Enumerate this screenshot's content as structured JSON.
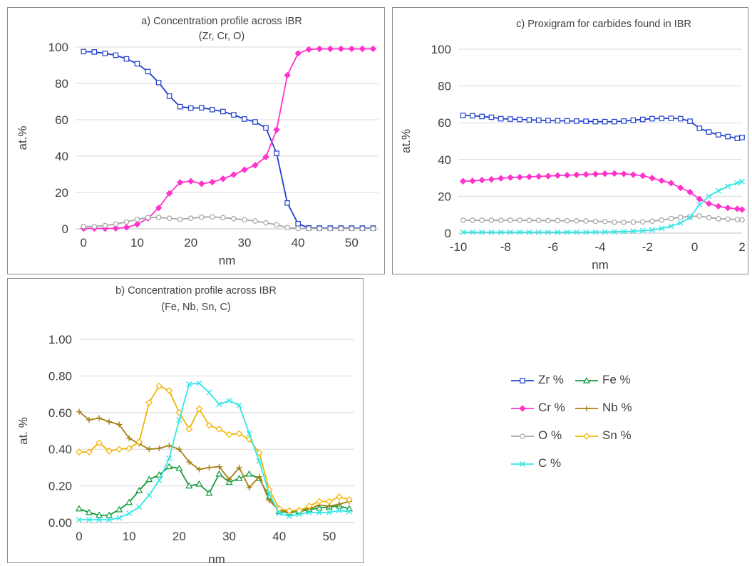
{
  "chart_data": [
    {
      "id": "a",
      "type": "line",
      "title": "a) Concentration profile across IBR",
      "subtitle": "(Zr, Cr, O)",
      "xlabel": "nm",
      "ylabel": "at.%",
      "xlim": [
        -1.5,
        55
      ],
      "ylim": [
        0,
        100
      ],
      "xticks": [
        0,
        10,
        20,
        30,
        40,
        50
      ],
      "yticks": [
        0,
        20,
        40,
        60,
        80,
        100
      ],
      "xtick_labels": [
        "0",
        "10",
        "20",
        "30",
        "40",
        "50"
      ],
      "ytick_labels": [
        "0",
        "20",
        "40",
        "60",
        "80",
        "100"
      ],
      "grid": "horizontal",
      "x": [
        0,
        2,
        4,
        6,
        8,
        10,
        12,
        14,
        16,
        18,
        20,
        22,
        24,
        26,
        28,
        30,
        32,
        34,
        36,
        38,
        40,
        42,
        44,
        46,
        48,
        50,
        52,
        54
      ],
      "series": [
        {
          "name": "Zr %",
          "color": "#1f3fcf",
          "marker": "square-open",
          "values": [
            97.5,
            97.3,
            96.5,
            95.5,
            93.5,
            90.8,
            86.5,
            80.5,
            73,
            67.2,
            66.4,
            66.6,
            65.6,
            64.5,
            62.7,
            60.4,
            58.8,
            55.5,
            41.5,
            14.2,
            2.8,
            0.5,
            0.4,
            0.4,
            0.4,
            0.4,
            0.4,
            0.4
          ]
        },
        {
          "name": "Cr %",
          "color": "#ff33cc",
          "marker": "diamond",
          "values": [
            0.2,
            0.2,
            0.2,
            0.3,
            0.8,
            2.5,
            5.8,
            11.5,
            19.5,
            25.5,
            26.2,
            24.8,
            25.7,
            27.5,
            29.8,
            32.5,
            35,
            39.5,
            54.5,
            84.5,
            96.5,
            98.7,
            99,
            99,
            99,
            99,
            99,
            99
          ]
        },
        {
          "name": "O %",
          "color": "#a6a6a6",
          "marker": "circle-open",
          "values": [
            1.3,
            1.3,
            1.8,
            2.6,
            3.8,
            5.2,
            6.2,
            6.3,
            5.8,
            5.2,
            5.8,
            6.4,
            6.6,
            6.1,
            5.6,
            5,
            4.3,
            3.3,
            2.2,
            0.7,
            0.2,
            0.1,
            0.1,
            0.1,
            0.1,
            0.1,
            0.1,
            0.1
          ]
        }
      ]
    },
    {
      "id": "c",
      "type": "line",
      "title": "c) Proxigram for carbides found in IBR",
      "subtitle": "",
      "xlabel": "nm",
      "ylabel": "at.%",
      "xlim": [
        -10,
        2
      ],
      "ylim": [
        0,
        100
      ],
      "xticks": [
        -10,
        -8,
        -6,
        -4,
        -2,
        0,
        2
      ],
      "yticks": [
        0,
        20,
        40,
        60,
        80,
        100
      ],
      "xtick_labels": [
        "-10",
        "-8",
        "-6",
        "-4",
        "-2",
        "0",
        "2"
      ],
      "ytick_labels": [
        "0",
        "20",
        "40",
        "60",
        "80",
        "100"
      ],
      "grid": "horizontal",
      "x": [
        -9.8,
        -9.4,
        -9.0,
        -8.6,
        -8.2,
        -7.8,
        -7.4,
        -7.0,
        -6.6,
        -6.2,
        -5.8,
        -5.4,
        -5.0,
        -4.6,
        -4.2,
        -3.8,
        -3.4,
        -3.0,
        -2.6,
        -2.2,
        -1.8,
        -1.4,
        -1.0,
        -0.6,
        -0.2,
        0.2,
        0.6,
        1.0,
        1.4,
        1.8,
        2.0
      ],
      "series": [
        {
          "name": "Zr %",
          "color": "#1f3fcf",
          "marker": "square-open",
          "values": [
            64,
            63.8,
            63.4,
            63,
            62.2,
            62,
            61.8,
            61.6,
            61.4,
            61.2,
            61.1,
            61,
            60.9,
            60.8,
            60.6,
            60.6,
            60.6,
            60.9,
            61.4,
            61.8,
            62.2,
            62.3,
            62.4,
            62.2,
            60.8,
            57,
            55,
            53.5,
            52.5,
            51.5,
            52
          ]
        },
        {
          "name": "Cr %",
          "color": "#ff33cc",
          "marker": "diamond",
          "values": [
            28.2,
            28.4,
            28.8,
            29.2,
            29.8,
            30.2,
            30.4,
            30.6,
            30.8,
            31,
            31.3,
            31.5,
            31.7,
            31.9,
            32.1,
            32.3,
            32.4,
            32.2,
            31.8,
            31.2,
            29.9,
            28.5,
            27.2,
            24.6,
            22.3,
            18.5,
            16,
            14.6,
            13.7,
            13.2,
            12.8
          ]
        },
        {
          "name": "O %",
          "color": "#a6a6a6",
          "marker": "circle-open",
          "values": [
            7,
            7,
            7,
            7,
            7,
            7,
            7,
            6.9,
            6.9,
            6.8,
            6.8,
            6.7,
            6.7,
            6.6,
            6.4,
            6.3,
            6,
            5.9,
            6,
            6.1,
            6.5,
            7.1,
            7.9,
            8.6,
            9,
            9.3,
            8.4,
            7.8,
            7.6,
            7.4,
            7.2
          ]
        },
        {
          "name": "C %",
          "color": "#33e6e6",
          "marker": "x",
          "values": [
            0.5,
            0.5,
            0.5,
            0.5,
            0.5,
            0.5,
            0.5,
            0.5,
            0.5,
            0.5,
            0.5,
            0.5,
            0.5,
            0.5,
            0.6,
            0.6,
            0.7,
            0.8,
            1,
            1.3,
            1.7,
            2.5,
            3.8,
            5.5,
            8.5,
            15.5,
            20,
            23,
            25.5,
            27.3,
            28
          ]
        }
      ]
    },
    {
      "id": "b",
      "type": "line",
      "title": "b) Concentration profile across IBR",
      "subtitle": "(Fe, Nb, Sn, C)",
      "xlabel": "nm",
      "ylabel": "at. %",
      "xlim": [
        0,
        55
      ],
      "ylim": [
        0,
        1
      ],
      "xticks": [
        0,
        10,
        20,
        30,
        40,
        50
      ],
      "yticks": [
        0,
        0.2,
        0.4,
        0.6,
        0.8,
        1.0
      ],
      "xtick_labels": [
        "0",
        "10",
        "20",
        "30",
        "40",
        "50"
      ],
      "ytick_labels": [
        "0.00",
        "0.20",
        "0.40",
        "0.60",
        "0.80",
        "1.00"
      ],
      "grid": "horizontal",
      "x": [
        0,
        2,
        4,
        6,
        8,
        10,
        12,
        14,
        16,
        18,
        20,
        22,
        24,
        26,
        28,
        30,
        32,
        34,
        36,
        38,
        40,
        42,
        44,
        46,
        48,
        50,
        52,
        54
      ],
      "series": [
        {
          "name": "Fe %",
          "color": "#109a3c",
          "marker": "triangle-open",
          "values": [
            0.075,
            0.055,
            0.04,
            0.04,
            0.07,
            0.11,
            0.175,
            0.235,
            0.26,
            0.305,
            0.295,
            0.2,
            0.21,
            0.16,
            0.265,
            0.22,
            0.24,
            0.265,
            0.24,
            0.14,
            0.06,
            0.055,
            0.06,
            0.07,
            0.08,
            0.085,
            0.09,
            0.075
          ]
        },
        {
          "name": "Nb %",
          "color": "#a6800f",
          "marker": "plus",
          "values": [
            0.605,
            0.56,
            0.57,
            0.55,
            0.535,
            0.46,
            0.43,
            0.4,
            0.405,
            0.42,
            0.4,
            0.33,
            0.29,
            0.3,
            0.305,
            0.235,
            0.3,
            0.19,
            0.25,
            0.12,
            0.065,
            0.06,
            0.07,
            0.075,
            0.095,
            0.09,
            0.1,
            0.115
          ]
        },
        {
          "name": "Sn %",
          "color": "#f0b400",
          "marker": "diamond-open",
          "values": [
            0.385,
            0.385,
            0.435,
            0.39,
            0.4,
            0.405,
            0.44,
            0.655,
            0.745,
            0.72,
            0.6,
            0.51,
            0.62,
            0.53,
            0.51,
            0.48,
            0.485,
            0.455,
            0.38,
            0.18,
            0.075,
            0.065,
            0.065,
            0.09,
            0.115,
            0.115,
            0.14,
            0.125
          ]
        },
        {
          "name": "C %",
          "color": "#33e6e6",
          "marker": "x",
          "values": [
            0.015,
            0.015,
            0.015,
            0.015,
            0.025,
            0.05,
            0.085,
            0.15,
            0.23,
            0.35,
            0.56,
            0.755,
            0.76,
            0.71,
            0.645,
            0.665,
            0.64,
            0.485,
            0.335,
            0.155,
            0.05,
            0.035,
            0.045,
            0.055,
            0.055,
            0.055,
            0.065,
            0.06
          ]
        }
      ]
    }
  ],
  "legend": {
    "placement": "right of panel b",
    "items": [
      {
        "label": "Zr %",
        "color": "#1f3fcf",
        "marker": "square-open"
      },
      {
        "label": "Fe %",
        "color": "#109a3c",
        "marker": "triangle-open"
      },
      {
        "label": "Cr %",
        "color": "#ff33cc",
        "marker": "diamond"
      },
      {
        "label": "Nb %",
        "color": "#a6800f",
        "marker": "plus"
      },
      {
        "label": "O %",
        "color": "#a6a6a6",
        "marker": "circle-open"
      },
      {
        "label": "Sn %",
        "color": "#f0b400",
        "marker": "diamond-open"
      },
      {
        "label": "C %",
        "color": "#33e6e6",
        "marker": "x"
      }
    ]
  }
}
